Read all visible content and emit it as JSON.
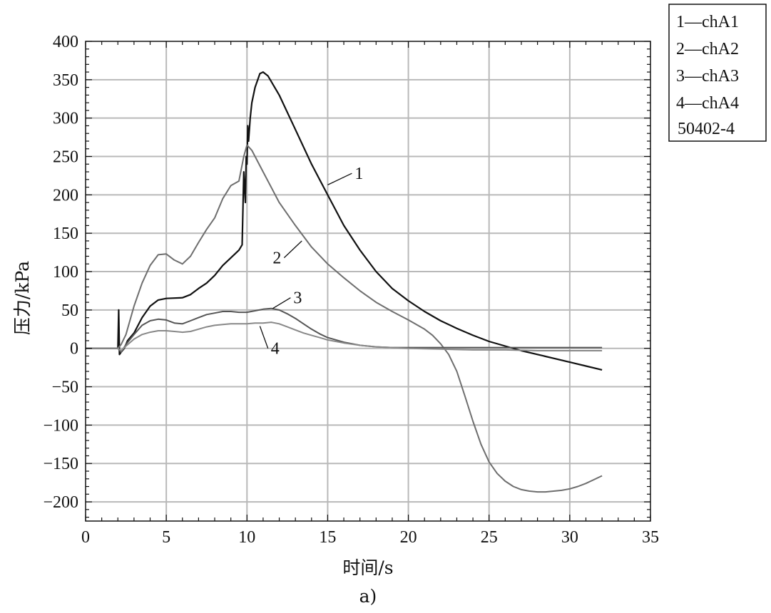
{
  "chart_data": {
    "type": "line",
    "xlabel": "时间/s",
    "ylabel": "压力/kPa",
    "caption": "a)",
    "xlim": [
      0,
      35
    ],
    "ylim": [
      -225,
      400
    ],
    "xticks": [
      0,
      5,
      10,
      15,
      20,
      25,
      30,
      35
    ],
    "yticks": [
      400,
      350,
      300,
      250,
      200,
      150,
      100,
      50,
      0,
      -50,
      -100,
      -150,
      -200
    ],
    "ytick_labels": [
      "400",
      "350",
      "300",
      "250",
      "200",
      "150",
      "100",
      "50",
      "0",
      "−50",
      "−100",
      "−150",
      "−200"
    ],
    "grid": true,
    "legend": {
      "position": "top-right, outside",
      "entries": [
        "1—chA1",
        "2—chA2",
        "3—chA3",
        "4—chA4"
      ],
      "note": "50402-4"
    },
    "series": [
      {
        "name": "1",
        "color": "#111111",
        "label_text": "1",
        "label_pos": [
          16.5,
          228
        ],
        "label_anchor": [
          15.0,
          213
        ],
        "x": [
          0,
          2.0,
          2.05,
          2.1,
          2.2,
          2.4,
          2.6,
          3.0,
          3.5,
          4.0,
          4.5,
          5.0,
          6.0,
          6.5,
          7.0,
          7.5,
          8.0,
          8.5,
          9.0,
          9.5,
          9.7,
          9.8,
          9.9,
          9.95,
          10.0,
          10.05,
          10.1,
          10.2,
          10.3,
          10.5,
          10.8,
          11.0,
          11.3,
          12.0,
          13.0,
          14.0,
          15.0,
          16.0,
          17.0,
          18.0,
          19.0,
          20.0,
          21.0,
          22.0,
          23.0,
          24.0,
          25.0,
          26.0,
          27.0,
          28.0,
          29.0,
          30.0,
          31.0,
          32.0
        ],
        "y": [
          0,
          0,
          50,
          -8,
          -5,
          0,
          10,
          20,
          40,
          55,
          63,
          65,
          66,
          70,
          78,
          85,
          95,
          108,
          118,
          128,
          135,
          230,
          190,
          250,
          240,
          290,
          270,
          300,
          320,
          340,
          358,
          360,
          355,
          330,
          285,
          240,
          200,
          160,
          128,
          100,
          78,
          62,
          48,
          36,
          26,
          17,
          9,
          3,
          -3,
          -8,
          -13,
          -18,
          -23,
          -28
        ]
      },
      {
        "name": "2",
        "color": "#6e6e6e",
        "label_text": "2",
        "label_pos": [
          12.3,
          118
        ],
        "label_anchor": [
          13.4,
          140
        ],
        "x": [
          0,
          2.0,
          2.2,
          2.5,
          3.0,
          3.5,
          4.0,
          4.5,
          5.0,
          5.5,
          6.0,
          6.5,
          7.0,
          7.5,
          8.0,
          8.5,
          9.0,
          9.5,
          9.8,
          10.0,
          10.3,
          11.0,
          12.0,
          13.0,
          14.0,
          15.0,
          16.0,
          17.0,
          18.0,
          19.0,
          20.0,
          21.0,
          21.5,
          22.0,
          22.5,
          23.0,
          23.5,
          24.0,
          24.5,
          25.0,
          25.5,
          26.0,
          26.5,
          27.0,
          27.5,
          28.0,
          28.5,
          29.0,
          29.5,
          30.0,
          30.5,
          31.0,
          31.5,
          32.0
        ],
        "y": [
          0,
          0,
          5,
          18,
          55,
          85,
          108,
          122,
          123,
          115,
          110,
          120,
          138,
          155,
          170,
          195,
          212,
          218,
          250,
          265,
          258,
          230,
          190,
          160,
          132,
          110,
          92,
          75,
          60,
          48,
          37,
          25,
          17,
          6,
          -8,
          -30,
          -62,
          -95,
          -125,
          -148,
          -163,
          -173,
          -180,
          -184,
          -186,
          -187,
          -187,
          -186,
          -185,
          -183,
          -180,
          -176,
          -171,
          -166
        ]
      },
      {
        "name": "3",
        "color": "#555555",
        "label_text": "3",
        "label_pos": [
          12.7,
          66
        ],
        "label_anchor": [
          11.6,
          52
        ],
        "x": [
          0,
          2.0,
          2.2,
          2.5,
          3.0,
          3.5,
          4.0,
          4.5,
          5.0,
          5.5,
          6.0,
          6.5,
          7.0,
          7.5,
          8.0,
          8.5,
          9.0,
          9.5,
          10.0,
          10.5,
          11.0,
          11.5,
          12.0,
          12.5,
          13.0,
          13.5,
          14.0,
          14.5,
          15.0,
          16.0,
          17.0,
          18.0,
          19.0,
          20.0,
          22.0,
          24.0,
          26.0,
          28.0,
          30.0,
          32.0
        ],
        "y": [
          0,
          0,
          -5,
          5,
          18,
          30,
          36,
          38,
          37,
          33,
          32,
          36,
          40,
          44,
          46,
          48,
          48,
          47,
          47,
          49,
          51,
          52,
          50,
          45,
          39,
          32,
          25,
          19,
          14,
          8,
          4,
          2,
          1,
          1,
          1,
          1,
          1,
          1,
          1,
          1
        ]
      },
      {
        "name": "4",
        "color": "#888888",
        "label_text": "4",
        "label_pos": [
          11.3,
          0
        ],
        "label_anchor": [
          10.8,
          29
        ],
        "x": [
          0,
          2.0,
          2.2,
          2.5,
          3.0,
          3.5,
          4.0,
          4.5,
          5.0,
          5.5,
          6.0,
          6.5,
          7.0,
          7.5,
          8.0,
          8.5,
          9.0,
          9.5,
          10.0,
          10.5,
          11.0,
          11.5,
          12.0,
          12.5,
          13.0,
          13.5,
          14.0,
          14.5,
          15.0,
          16.0,
          17.0,
          18.0,
          19.0,
          20.0,
          22.0,
          24.0,
          26.0,
          28.0,
          30.0,
          32.0
        ],
        "y": [
          0,
          0,
          -3,
          3,
          12,
          18,
          21,
          23,
          23,
          22,
          21,
          22,
          25,
          28,
          30,
          31,
          32,
          32,
          32,
          33,
          33,
          34,
          32,
          28,
          24,
          20,
          17,
          14,
          11,
          7,
          4,
          2,
          1,
          0,
          -1,
          -2,
          -2,
          -3,
          -3,
          -3
        ]
      }
    ]
  }
}
